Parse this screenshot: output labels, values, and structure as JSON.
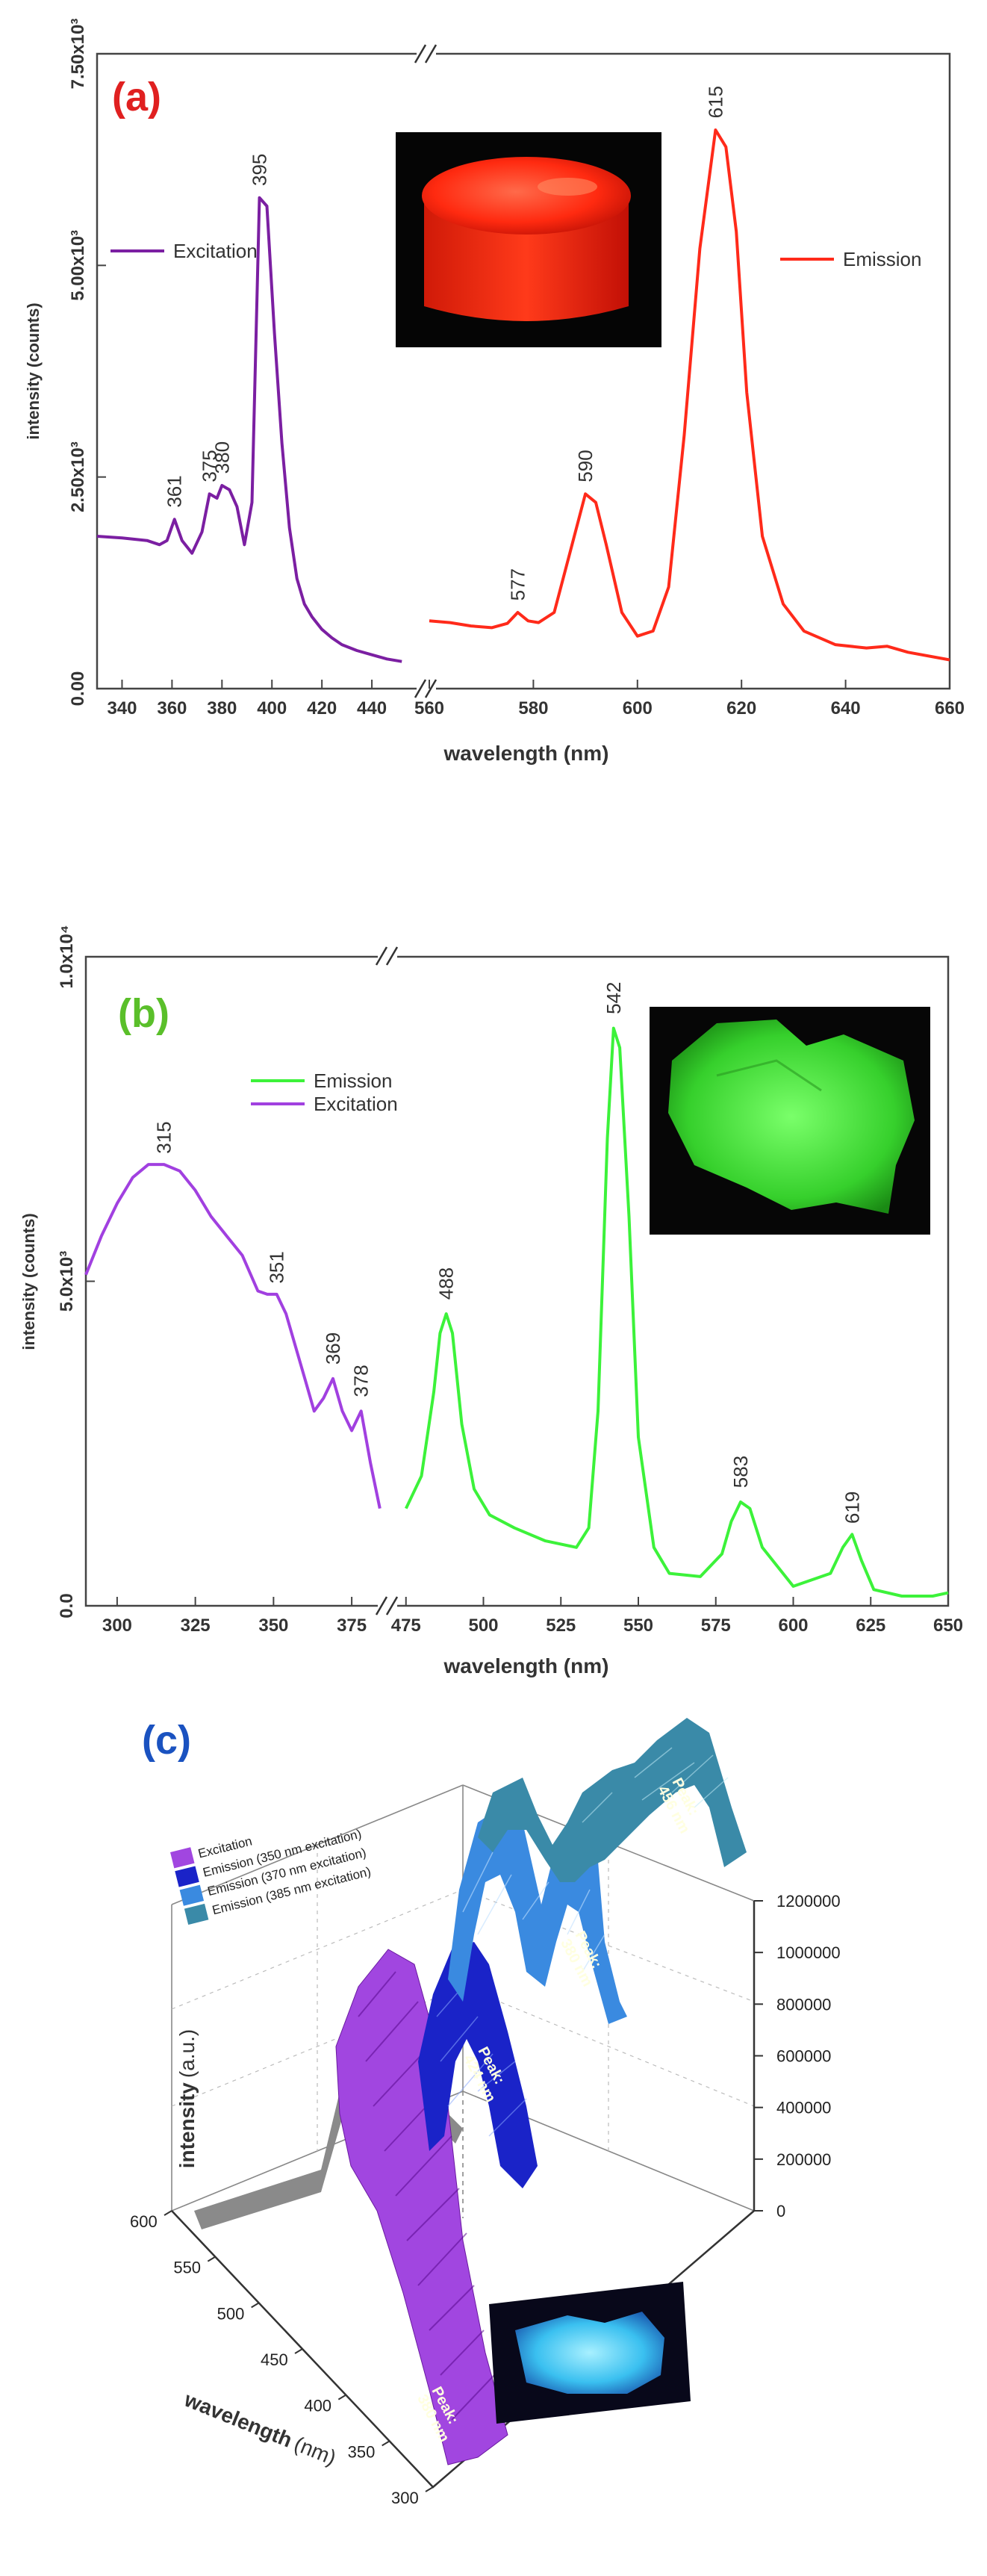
{
  "colors": {
    "a_excitation": "#7b1fa2",
    "a_emission": "#ff2a1a",
    "b_emission": "#3cf23a",
    "b_excitation": "#a140e0",
    "c_excitation": "#a146e0",
    "c_em350": "#1a23c8",
    "c_em370": "#3a8ae0",
    "c_em385": "#3a8aa8",
    "c_label_a": "#e02020",
    "c_label_b": "#5abf2a",
    "c_label_c": "#1a52c0"
  },
  "chart_data": [
    {
      "panel": "(a)",
      "type": "line",
      "ylabel": "intensity (counts)",
      "xlabel": "wavelength (nm)",
      "x_ticks_left": [
        "340",
        "360",
        "380",
        "400",
        "420",
        "440"
      ],
      "x_ticks_right": [
        "560",
        "580",
        "600",
        "620",
        "640",
        "660"
      ],
      "y_ticks": [
        "0.00",
        "2.50x10³",
        "5.00x10³",
        "7.50x10³"
      ],
      "ylim": [
        0,
        7500
      ],
      "xlim_left": [
        330,
        460
      ],
      "xlim_right": [
        560,
        660
      ],
      "axis_break": true,
      "legend": [
        "Excitation",
        "Emission"
      ],
      "peak_labels": [
        "361",
        "375",
        "380",
        "395",
        "577",
        "590",
        "615"
      ],
      "series": [
        {
          "name": "Excitation",
          "x": [
            330,
            340,
            350,
            355,
            358,
            361,
            364,
            368,
            372,
            375,
            378,
            380,
            383,
            386,
            389,
            392,
            395,
            398,
            401,
            404,
            407,
            410,
            413,
            416,
            420,
            424,
            428,
            434,
            440,
            446,
            452
          ],
          "y": [
            1800,
            1780,
            1750,
            1700,
            1750,
            2000,
            1750,
            1600,
            1850,
            2300,
            2250,
            2400,
            2350,
            2150,
            1700,
            2200,
            5800,
            5700,
            4200,
            2900,
            1900,
            1300,
            1000,
            850,
            700,
            600,
            520,
            450,
            400,
            350,
            320
          ]
        },
        {
          "name": "Emission",
          "x": [
            560,
            564,
            568,
            572,
            575,
            577,
            579,
            581,
            584,
            587,
            590,
            592,
            594,
            597,
            600,
            603,
            606,
            609,
            612,
            615,
            617,
            619,
            621,
            624,
            628,
            632,
            638,
            644,
            648,
            652,
            660
          ],
          "y": [
            800,
            780,
            740,
            720,
            770,
            900,
            800,
            780,
            900,
            1600,
            2300,
            2200,
            1700,
            900,
            620,
            680,
            1200,
            3000,
            5200,
            6600,
            6400,
            5400,
            3500,
            1800,
            1000,
            680,
            520,
            480,
            500,
            430,
            340
          ]
        }
      ]
    },
    {
      "panel": "(b)",
      "type": "line",
      "ylabel": "intensity (counts)",
      "xlabel": "wavelength (nm)",
      "x_ticks_left": [
        "300",
        "325",
        "350",
        "375"
      ],
      "x_ticks_right": [
        "475",
        "500",
        "525",
        "550",
        "575",
        "600",
        "625",
        "650"
      ],
      "y_ticks": [
        "0.0",
        "5.0x10³",
        "1.0x10⁴"
      ],
      "ylim": [
        0,
        10000
      ],
      "xlim_left": [
        290,
        385
      ],
      "xlim_right": [
        470,
        650
      ],
      "axis_break": true,
      "legend": [
        "Emission",
        "Excitation"
      ],
      "peak_labels": [
        "315",
        "351",
        "369",
        "378",
        "488",
        "542",
        "583",
        "619"
      ],
      "series": [
        {
          "name": "Emission",
          "x": [
            475,
            480,
            484,
            486,
            488,
            490,
            493,
            497,
            502,
            510,
            520,
            530,
            534,
            537,
            540,
            542,
            544,
            547,
            550,
            555,
            560,
            570,
            577,
            580,
            583,
            586,
            590,
            600,
            612,
            616,
            619,
            622,
            626,
            635,
            645,
            650
          ],
          "y": [
            1500,
            2000,
            3300,
            4200,
            4500,
            4200,
            2800,
            1800,
            1400,
            1200,
            1000,
            900,
            1200,
            3000,
            7200,
            8900,
            8600,
            6000,
            2600,
            900,
            500,
            450,
            800,
            1300,
            1600,
            1500,
            900,
            300,
            500,
            900,
            1100,
            700,
            250,
            150,
            150,
            200
          ]
        },
        {
          "name": "Excitation",
          "x": [
            290,
            295,
            300,
            305,
            310,
            315,
            320,
            325,
            330,
            335,
            340,
            345,
            348,
            351,
            354,
            357,
            360,
            363,
            366,
            369,
            372,
            375,
            378,
            381,
            384
          ],
          "y": [
            5100,
            5700,
            6200,
            6600,
            6800,
            6800,
            6700,
            6400,
            6000,
            5700,
            5400,
            4850,
            4800,
            4800,
            4500,
            4000,
            3500,
            3000,
            3200,
            3500,
            3000,
            2700,
            3000,
            2200,
            1500
          ]
        }
      ]
    },
    {
      "panel": "(c)",
      "type": "area",
      "zlabel_bold": "intensity",
      "zlabel_unit": "(a.u.)",
      "ylabel_bold": "wavelength",
      "ylabel_unit": "(nm)",
      "z_ticks": [
        "0",
        "200000",
        "400000",
        "600000",
        "800000",
        "1000000",
        "1200000"
      ],
      "wavelength_ticks": [
        "300",
        "350",
        "400",
        "450",
        "500",
        "550",
        "600"
      ],
      "legend": [
        "Excitation",
        "Emission (350 nm excitation)",
        "Emission (370 nm excitation)",
        "Emission (385 nm excitation)"
      ],
      "peak_annotations": [
        {
          "line1": "Peak:",
          "line2": "380 nm"
        },
        {
          "line1": "Peak:",
          "line2": "424 nm"
        },
        {
          "line1": "Peak:",
          "line2": "380 nm"
        },
        {
          "line1": "Peak:",
          "line2": "456 nm"
        }
      ]
    }
  ],
  "panel_labels": {
    "a": "(a)",
    "b": "(b)",
    "c": "(c)"
  }
}
